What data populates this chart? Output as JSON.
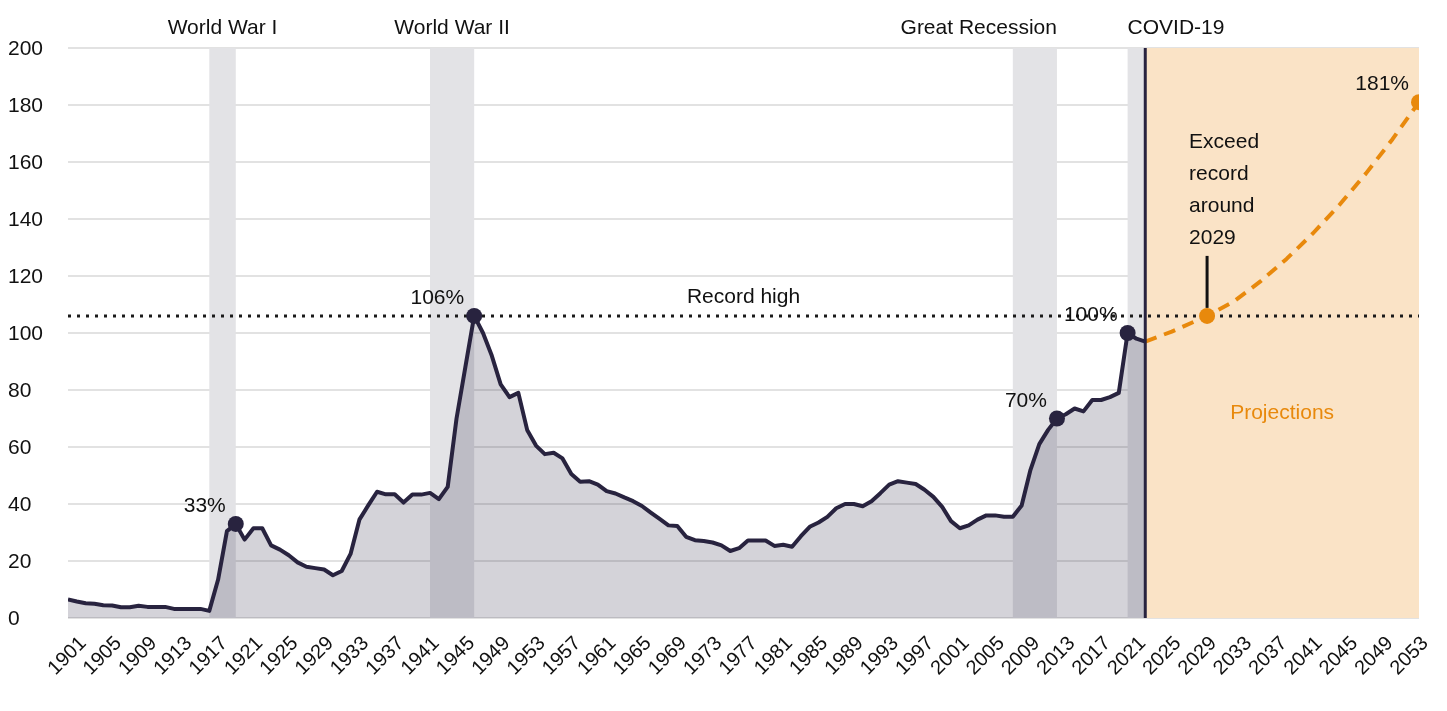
{
  "chart_data": {
    "type": "area",
    "xlim": [
      1900,
      2053
    ],
    "xticks": [
      1901,
      1905,
      1909,
      1913,
      1917,
      1921,
      1925,
      1929,
      1933,
      1937,
      1941,
      1945,
      1949,
      1953,
      1957,
      1961,
      1965,
      1969,
      1973,
      1977,
      1981,
      1985,
      1989,
      1993,
      1997,
      2001,
      2005,
      2009,
      2013,
      2017,
      2021,
      2025,
      2029,
      2033,
      2037,
      2041,
      2045,
      2049,
      2053
    ],
    "ylim": [
      0,
      200
    ],
    "yticks": [
      0,
      20,
      40,
      60,
      80,
      100,
      120,
      140,
      160,
      180,
      200
    ],
    "grid": "y",
    "line_style": "solid",
    "series": [
      {
        "color": "#28233f",
        "x": [
          1900,
          1901,
          1902,
          1903,
          1904,
          1905,
          1906,
          1907,
          1908,
          1909,
          1910,
          1911,
          1912,
          1913,
          1914,
          1915,
          1916,
          1917,
          1918,
          1919,
          1920,
          1921,
          1922,
          1923,
          1924,
          1925,
          1926,
          1927,
          1928,
          1929,
          1930,
          1931,
          1932,
          1933,
          1934,
          1935,
          1936,
          1937,
          1938,
          1939,
          1940,
          1941,
          1942,
          1943,
          1944,
          1945,
          1946,
          1947,
          1948,
          1949,
          1950,
          1951,
          1952,
          1953,
          1954,
          1955,
          1956,
          1957,
          1958,
          1959,
          1960,
          1961,
          1962,
          1963,
          1964,
          1965,
          1966,
          1967,
          1968,
          1969,
          1970,
          1971,
          1972,
          1973,
          1974,
          1975,
          1976,
          1977,
          1978,
          1979,
          1980,
          1981,
          1982,
          1983,
          1984,
          1985,
          1986,
          1987,
          1988,
          1989,
          1990,
          1991,
          1992,
          1993,
          1994,
          1995,
          1996,
          1997,
          1998,
          1999,
          2000,
          2001,
          2002,
          2003,
          2004,
          2005,
          2006,
          2007,
          2008,
          2009,
          2010,
          2011,
          2012,
          2013,
          2014,
          2015,
          2016,
          2017,
          2018,
          2019,
          2020,
          2021,
          2022
        ],
        "values": [
          6.5,
          5.8,
          5.2,
          5.0,
          4.5,
          4.4,
          3.8,
          3.8,
          4.3,
          3.9,
          3.9,
          3.9,
          3.2,
          3.2,
          3.2,
          3.2,
          2.5,
          13.5,
          30.5,
          33,
          27.5,
          31.5,
          31.5,
          25.5,
          24,
          22,
          19.5,
          18,
          17.5,
          17,
          15,
          16.5,
          22.5,
          34.5,
          39.5,
          44.3,
          43.4,
          43.4,
          40.5,
          43.3,
          43.3,
          43.9,
          41.7,
          46,
          70,
          88,
          106,
          100,
          92,
          82,
          77.5,
          79,
          66,
          60.5,
          57.5,
          58,
          56,
          50.5,
          47.8,
          48,
          46.8,
          44.5,
          43.7,
          42.3,
          41,
          39.3,
          37,
          34.8,
          32.5,
          32.3,
          28.5,
          27.3,
          27,
          26.5,
          25.5,
          23.5,
          24.5,
          27.2,
          27.2,
          27.2,
          25.3,
          25.7,
          25,
          28.7,
          32,
          33.5,
          35.5,
          38.5,
          40,
          40,
          39.2,
          41,
          43.8,
          46.8,
          48,
          47.5,
          47,
          45,
          42.5,
          39,
          34,
          31.5,
          32.5,
          34.5,
          36,
          36,
          35.5,
          35.5,
          39.5,
          52,
          61,
          66,
          70,
          71.5,
          73.5,
          72.5,
          76.5,
          76.5,
          77.5,
          79,
          100,
          98,
          97
        ],
        "value_labels": [
          null,
          null,
          null,
          null,
          null,
          null,
          null,
          null,
          null,
          null,
          null,
          null,
          null,
          null,
          null,
          null,
          null,
          null,
          null,
          "33%",
          null,
          null,
          null,
          null,
          null,
          null,
          null,
          null,
          null,
          null,
          null,
          null,
          null,
          null,
          null,
          null,
          null,
          null,
          null,
          null,
          null,
          null,
          null,
          null,
          null,
          null,
          "106%",
          null,
          null,
          null,
          null,
          null,
          null,
          null,
          null,
          null,
          null,
          null,
          null,
          null,
          null,
          null,
          null,
          null,
          null,
          null,
          null,
          null,
          null,
          null,
          null,
          null,
          null,
          null,
          null,
          null,
          null,
          null,
          null,
          null,
          null,
          null,
          null,
          null,
          null,
          null,
          null,
          null,
          null,
          null,
          null,
          null,
          null,
          null,
          null,
          null,
          null,
          null,
          null,
          null,
          null,
          null,
          null,
          null,
          null,
          null,
          null,
          null,
          null,
          null,
          null,
          null,
          "70%",
          null,
          null,
          null,
          null,
          null,
          null,
          null,
          "100%",
          null,
          null
        ]
      },
      {
        "type": "line",
        "color": "#e8890c",
        "line_style": "dashed",
        "x": [
          2022,
          2025,
          2029,
          2032,
          2035,
          2038,
          2041,
          2044,
          2047,
          2050,
          2053
        ],
        "values": [
          97,
          100.5,
          106,
          111,
          118,
          126,
          135,
          145,
          156,
          168,
          181
        ],
        "value_labels": [
          null,
          null,
          null,
          null,
          null,
          null,
          null,
          null,
          null,
          null,
          "181%"
        ]
      }
    ],
    "bands": [
      {
        "axis": "x",
        "from": 1916,
        "to": 1919,
        "label": "World War I",
        "color": "#e3e3e6"
      },
      {
        "axis": "x",
        "from": 1941,
        "to": 1946,
        "label": "World War II",
        "color": "#e3e3e6"
      },
      {
        "axis": "x",
        "from": 2007,
        "to": 2012,
        "label": "Great Recession",
        "color": "#e3e3e6"
      },
      {
        "axis": "x",
        "from": 2020,
        "to": 2022,
        "label": "COVID-19",
        "color": "#e3e3e6"
      },
      {
        "axis": "x",
        "from": 2022,
        "to": 2053,
        "label": "Projections",
        "color": "#fae3c6"
      }
    ],
    "ref_lines": [
      {
        "axis": "y",
        "value": 106,
        "label": "Record high",
        "color": "#1a1a1a",
        "line_style": "dotted"
      },
      {
        "axis": "x",
        "value": 2022,
        "color": "#28233f",
        "line_style": "solid"
      }
    ],
    "annotations": [
      {
        "text": "Exceed record around 2029",
        "x": 2029,
        "y": 106
      }
    ]
  }
}
